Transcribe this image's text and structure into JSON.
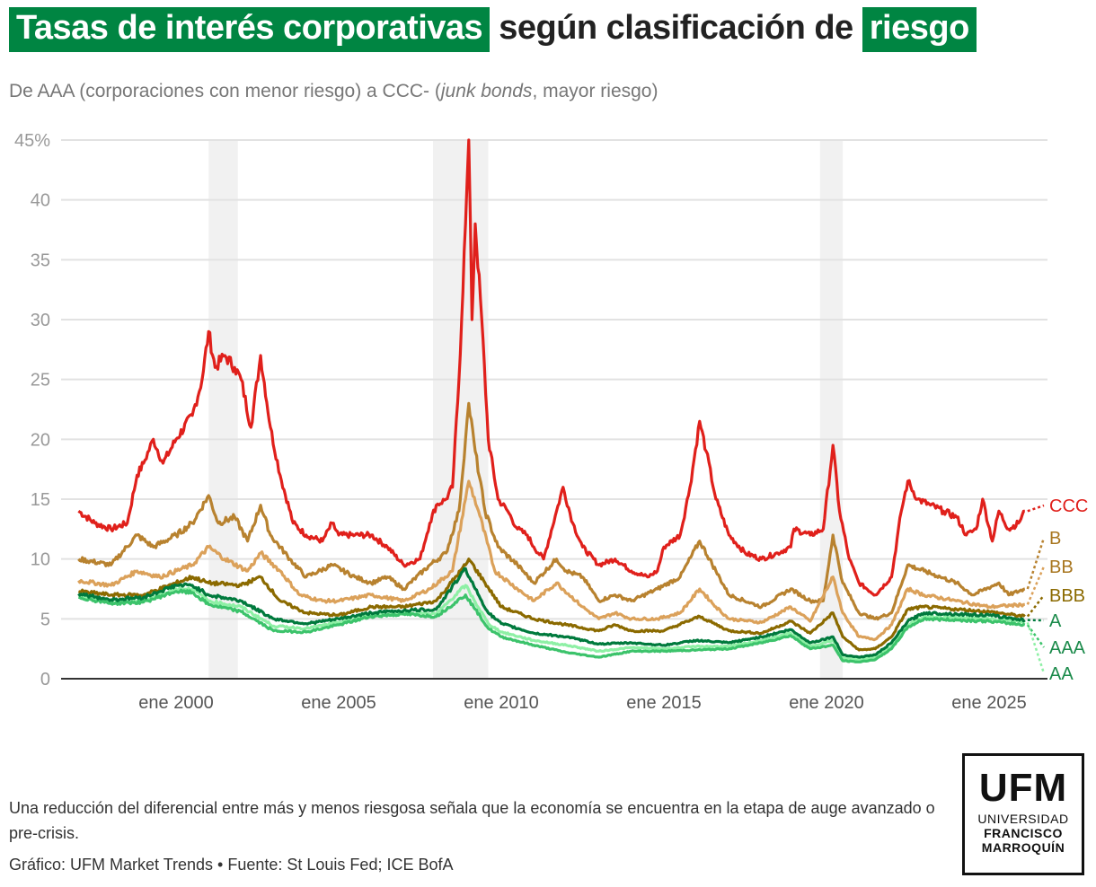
{
  "title": {
    "part1": "Tasas de interés corporativas",
    "part2": " según clasificación de ",
    "part3": "riesgo"
  },
  "subtitle": {
    "pre": "De AAA (corporaciones con menor riesgo) a CCC- (",
    "italic": "junk bonds",
    "post": ", mayor riesgo)"
  },
  "note": "Una reducción del diferencial entre más y menos riesgosa señala que la economía se encuentra en la etapa de auge avanzado o pre-crisis.",
  "credit": "Gráfico: UFM Market Trends • Fuente: St Louis Fed; ICE BofA",
  "logo": {
    "big": "UFM",
    "line1": "UNIVERSIDAD",
    "line2": "FRANCISCO",
    "line3": "MARROQUÍN"
  },
  "chart_data": {
    "type": "line",
    "title": "Tasas de interés corporativas según clasificación de riesgo",
    "ylabel": "%",
    "ylim": [
      0,
      45
    ],
    "xlim": [
      1996.5,
      2026.8
    ],
    "yticks": [
      0,
      5,
      10,
      15,
      20,
      25,
      30,
      35,
      40,
      45
    ],
    "ytick_labels": [
      "0",
      "5",
      "10",
      "15",
      "20",
      "25",
      "30",
      "35",
      "40",
      "45%"
    ],
    "xticks": [
      2000,
      2005,
      2010,
      2015,
      2020,
      2025
    ],
    "xtick_labels": [
      "ene 2000",
      "ene 2005",
      "ene 2010",
      "ene 2015",
      "ene 2020",
      "ene 2025"
    ],
    "recessions": [
      [
        2001.0,
        2001.9
      ],
      [
        2007.9,
        2009.6
      ],
      [
        2019.8,
        2020.5
      ]
    ],
    "grid": true,
    "legend": "direct labels at right end",
    "series": [
      {
        "name": "CCC",
        "color": "#e0201b",
        "x": [
          1997,
          1997.5,
          1998,
          1998.5,
          1998.8,
          1999,
          1999.3,
          1999.6,
          2000,
          2000.5,
          2000.8,
          2001,
          2001.2,
          2001.5,
          2001.8,
          2002,
          2002.3,
          2002.6,
          2002.9,
          2003.2,
          2003.6,
          2004,
          2004.5,
          2004.8,
          2005,
          2005.5,
          2006,
          2006.5,
          2007,
          2007.5,
          2007.8,
          2008,
          2008.3,
          2008.5,
          2008.7,
          2008.9,
          2009,
          2009.1,
          2009.2,
          2009.4,
          2009.6,
          2009.9,
          2010.2,
          2010.5,
          2010.8,
          2011,
          2011.3,
          2011.7,
          2011.9,
          2012.2,
          2012.5,
          2013,
          2013.5,
          2014,
          2014.5,
          2014.8,
          2015,
          2015.5,
          2015.8,
          2016.1,
          2016.3,
          2016.6,
          2017,
          2017.5,
          2018,
          2018.5,
          2018.9,
          2019,
          2019.5,
          2019.9,
          2020.2,
          2020.4,
          2020.7,
          2021,
          2021.5,
          2022,
          2022.3,
          2022.5,
          2022.8,
          2023.2,
          2023.6,
          2024,
          2024.3,
          2024.6,
          2024.8,
          2025.1,
          2025.3,
          2025.6,
          2025.9,
          2026.1
        ],
        "y": [
          14,
          13,
          12.5,
          13,
          17,
          18,
          20,
          18,
          20,
          22,
          25,
          29,
          26,
          27,
          26,
          25,
          21,
          27,
          21,
          17,
          13,
          12,
          11.5,
          13,
          12,
          12,
          12,
          11,
          9.5,
          10,
          13,
          14.5,
          15,
          16,
          25,
          38,
          45,
          30,
          38,
          30,
          20,
          15,
          14,
          12.5,
          12,
          11,
          10,
          14,
          16,
          13,
          11,
          9.5,
          10,
          9,
          8.5,
          9,
          11,
          12,
          16,
          21.5,
          19,
          15,
          12,
          10.5,
          10,
          10.5,
          11,
          12.5,
          12,
          12.5,
          19.5,
          14,
          10,
          8,
          7,
          8.5,
          14,
          16.5,
          15,
          14.5,
          14,
          13.5,
          12,
          12.5,
          15,
          11.5,
          14,
          12.5,
          13,
          14
        ]
      },
      {
        "name": "B",
        "color": "#b8822f",
        "x": [
          1997,
          1998,
          1998.8,
          1999.3,
          2000,
          2000.5,
          2001,
          2001.3,
          2001.8,
          2002.2,
          2002.6,
          2002.9,
          2003.5,
          2004,
          2004.8,
          2005.5,
          2006,
          2006.5,
          2007,
          2007.8,
          2008.3,
          2008.7,
          2008.9,
          2009,
          2009.2,
          2009.5,
          2009.9,
          2010.5,
          2011,
          2011.7,
          2012,
          2012.5,
          2013,
          2013.5,
          2014,
          2014.8,
          2015.5,
          2016.1,
          2016.6,
          2017,
          2018,
          2018.9,
          2019.5,
          2019.9,
          2020.2,
          2020.5,
          2021,
          2021.5,
          2022,
          2022.5,
          2023,
          2023.5,
          2024,
          2024.5,
          2025.3,
          2025.6,
          2026.1
        ],
        "y": [
          10,
          9.5,
          12,
          11,
          12,
          13,
          15.3,
          13,
          13.5,
          11.5,
          14.5,
          12,
          10,
          8.5,
          9.5,
          8.5,
          8,
          8.5,
          7.5,
          9.5,
          10.5,
          14,
          20,
          23,
          19,
          14,
          11,
          9.5,
          8,
          10,
          9,
          8.5,
          6.5,
          7,
          6.5,
          7.5,
          8.5,
          11.5,
          9,
          7,
          6,
          7.5,
          6.5,
          6.5,
          12,
          8,
          5.5,
          5,
          5.5,
          9.5,
          9,
          8.5,
          8,
          7,
          8,
          7,
          7.5
        ]
      },
      {
        "name": "BB",
        "color": "#dba15a",
        "x": [
          1997,
          1998,
          1998.8,
          1999.5,
          2000.5,
          2001,
          2001.5,
          2002.2,
          2002.6,
          2003.2,
          2003.8,
          2004.5,
          2005,
          2006,
          2007,
          2007.8,
          2008.5,
          2008.9,
          2009,
          2009.3,
          2009.8,
          2010.5,
          2011,
          2011.7,
          2012.5,
          2013,
          2013.5,
          2014,
          2014.8,
          2015.5,
          2016.1,
          2016.6,
          2017,
          2018,
          2018.9,
          2019.5,
          2020.2,
          2020.5,
          2021,
          2021.5,
          2022,
          2022.5,
          2023,
          2024,
          2025,
          2026.1
        ],
        "y": [
          8.2,
          7.8,
          9,
          8.5,
          9.5,
          11,
          10,
          9,
          10.5,
          9,
          7,
          6.5,
          6.5,
          7,
          6.5,
          7.5,
          9,
          15,
          16.5,
          14,
          9,
          7.5,
          6.5,
          8,
          6,
          5,
          5.5,
          5,
          5,
          5.5,
          7.5,
          6,
          5,
          4.7,
          6,
          4.8,
          8.5,
          5.5,
          3.5,
          3.3,
          4.5,
          7.5,
          7,
          6.5,
          6,
          6.2
        ]
      },
      {
        "name": "BBB",
        "color": "#8b6a00",
        "x": [
          1997,
          1998,
          1999,
          2000,
          2000.5,
          2001,
          2002,
          2002.6,
          2003.2,
          2004,
          2005,
          2006,
          2007,
          2008,
          2008.9,
          2009,
          2009.5,
          2010,
          2011,
          2012,
          2013,
          2013.5,
          2014,
          2015,
          2016.1,
          2017,
          2018,
          2018.9,
          2019.5,
          2020.2,
          2020.5,
          2021,
          2021.5,
          2022,
          2022.5,
          2023,
          2024,
          2025,
          2026.1
        ],
        "y": [
          7.3,
          7,
          7,
          8,
          8.5,
          8,
          7.8,
          8.5,
          6.5,
          5.5,
          5.3,
          6,
          6,
          6.5,
          9.5,
          10,
          8,
          6,
          5,
          4.5,
          4,
          4.5,
          4,
          4,
          5.2,
          4,
          3.8,
          4.8,
          3.8,
          5.5,
          3.5,
          2.4,
          2.5,
          3.5,
          5.8,
          6,
          5.8,
          5.6,
          5.2
        ]
      },
      {
        "name": "AA",
        "color": "#8ef0a5",
        "x": [
          1997,
          1998,
          1999,
          2000,
          2000.5,
          2001,
          2002,
          2003,
          2004,
          2005,
          2006,
          2007,
          2008,
          2008.9,
          2009.2,
          2009.6,
          2010,
          2011,
          2012,
          2013,
          2014,
          2015,
          2016,
          2017,
          2018,
          2018.9,
          2019.5,
          2020.2,
          2020.5,
          2021,
          2021.5,
          2022,
          2022.5,
          2023,
          2024,
          2025,
          2026.1
        ],
        "y": [
          6.9,
          6.4,
          6.5,
          7.5,
          7.5,
          6.5,
          6.0,
          4.4,
          4.2,
          4.7,
          5.3,
          5.5,
          5.4,
          7.8,
          6.4,
          4.6,
          3.9,
          3.2,
          2.8,
          2.3,
          2.6,
          2.5,
          2.7,
          2.7,
          3.2,
          3.8,
          2.7,
          3.2,
          1.7,
          1.6,
          1.8,
          2.7,
          4.5,
          5.2,
          5.1,
          5.0,
          4.7
        ]
      },
      {
        "name": "AAA",
        "color": "#3cc36b",
        "x": [
          1997,
          1998,
          1999,
          2000,
          2000.5,
          2001,
          2002,
          2003,
          2004,
          2005,
          2006,
          2007,
          2008,
          2008.9,
          2009.2,
          2009.6,
          2010,
          2011,
          2012,
          2013,
          2014,
          2015,
          2016,
          2017,
          2018,
          2018.9,
          2019.5,
          2020.2,
          2020.5,
          2021,
          2021.5,
          2022,
          2022.5,
          2023,
          2024,
          2025,
          2026.1
        ],
        "y": [
          6.8,
          6.3,
          6.4,
          7.3,
          7.2,
          6.2,
          5.6,
          4.0,
          3.9,
          4.5,
          5.2,
          5.4,
          5.2,
          7.0,
          5.8,
          4.2,
          3.5,
          2.8,
          2.2,
          1.8,
          2.3,
          2.3,
          2.4,
          2.5,
          3.0,
          3.6,
          2.5,
          2.8,
          1.5,
          1.4,
          1.6,
          2.5,
          4.3,
          5.0,
          4.9,
          4.8,
          4.5
        ]
      },
      {
        "name": "A",
        "color": "#007a3d",
        "x": [
          1997,
          1998,
          1999,
          2000,
          2000.5,
          2001,
          2002,
          2003,
          2004,
          2005,
          2006,
          2007,
          2008,
          2008.9,
          2009.2,
          2009.6,
          2010,
          2011,
          2012,
          2013,
          2014,
          2015,
          2016,
          2017,
          2018,
          2018.9,
          2019.5,
          2020.2,
          2020.5,
          2021,
          2021.5,
          2022,
          2022.5,
          2023,
          2024,
          2025,
          2026.1
        ],
        "y": [
          7.1,
          6.6,
          6.8,
          7.8,
          7.8,
          7.0,
          6.5,
          5.0,
          4.6,
          5.0,
          5.5,
          5.7,
          5.8,
          9.2,
          7.5,
          5.5,
          4.6,
          3.8,
          3.5,
          2.9,
          3.0,
          2.8,
          3.2,
          3.0,
          3.5,
          4.1,
          3.0,
          3.5,
          2.0,
          1.8,
          2.0,
          3.0,
          4.8,
          5.5,
          5.4,
          5.3,
          4.9
        ]
      }
    ],
    "labels": [
      {
        "name": "CCC",
        "color": "#e0201b"
      },
      {
        "name": "B",
        "color": "#a8761f"
      },
      {
        "name": "BB",
        "color": "#a8761f"
      },
      {
        "name": "BBB",
        "color": "#8b6a00"
      },
      {
        "name": "A",
        "color": "#1a8a4a"
      },
      {
        "name": "AAA",
        "color": "#1a8a4a"
      },
      {
        "name": "AA",
        "color": "#1a8a4a"
      }
    ]
  }
}
